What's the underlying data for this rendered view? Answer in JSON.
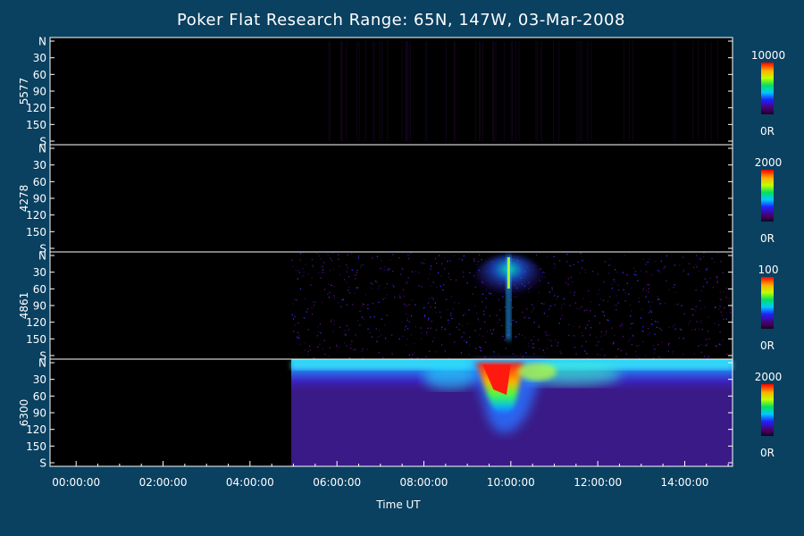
{
  "chart_data": {
    "type": "heatmap",
    "title": "Poker Flat Research Range: 65N, 147W, 03-Mar-2008",
    "xlabel": "Time UT",
    "x_ticks": [
      "00:00:00",
      "02:00:00",
      "04:00:00",
      "06:00:00",
      "08:00:00",
      "10:00:00",
      "12:00:00",
      "14:00:00"
    ],
    "x_tick_hours": [
      0,
      2,
      4,
      6,
      8,
      10,
      12,
      14
    ],
    "xlim_hours": [
      -0.6,
      15.1
    ],
    "y_tick_labels": [
      "N",
      "30",
      "60",
      "90",
      "120",
      "150",
      "S"
    ],
    "y_tick_values": [
      0,
      30,
      60,
      90,
      120,
      150,
      180
    ],
    "ylim": [
      0,
      180
    ],
    "data_start_hour": 4.95,
    "colors": {
      "background": "#0a4060",
      "plot_bg": "#000000",
      "text": "#ffffff"
    },
    "panels": [
      {
        "wavelength": "5577",
        "colorbar_max": "10000",
        "colorbar_min": "0R",
        "activity": "none"
      },
      {
        "wavelength": "4278",
        "colorbar_max": "2000",
        "colorbar_min": "0R",
        "activity": "none"
      },
      {
        "wavelength": "4861",
        "colorbar_max": "100",
        "colorbar_min": "0R",
        "activity": "faint noise with bright column near 10:00"
      },
      {
        "wavelength": "6300",
        "colorbar_max": "2000",
        "colorbar_min": "0R",
        "activity": "strong emission band peaking 09:20-10:20"
      }
    ]
  }
}
